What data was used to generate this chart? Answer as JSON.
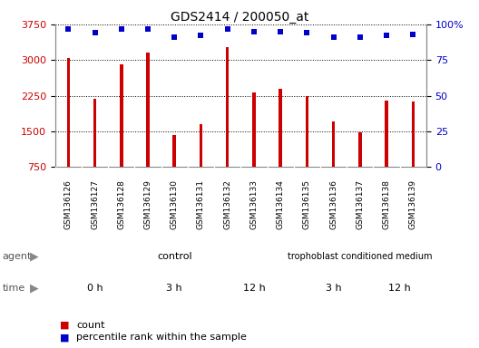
{
  "title": "GDS2414 / 200050_at",
  "samples": [
    "GSM136126",
    "GSM136127",
    "GSM136128",
    "GSM136129",
    "GSM136130",
    "GSM136131",
    "GSM136132",
    "GSM136133",
    "GSM136134",
    "GSM136135",
    "GSM136136",
    "GSM136137",
    "GSM136138",
    "GSM136139"
  ],
  "counts": [
    3050,
    2180,
    2900,
    3150,
    1430,
    1650,
    3280,
    2310,
    2390,
    2250,
    1700,
    1480,
    2150,
    2130
  ],
  "percentiles": [
    97,
    94,
    97,
    97,
    91,
    92,
    97,
    95,
    95,
    94,
    91,
    91,
    92,
    93
  ],
  "bar_color": "#cc0000",
  "dot_color": "#0000cc",
  "ylim_left": [
    750,
    3750
  ],
  "ylim_right": [
    0,
    100
  ],
  "yticks_left": [
    750,
    1500,
    2250,
    3000,
    3750
  ],
  "yticks_right": [
    0,
    25,
    50,
    75,
    100
  ],
  "bar_width": 0.12,
  "plot_bg": "#ffffff",
  "tick_area_bg": "#d0d0d0",
  "tick_label_color_left": "#cc0000",
  "tick_label_color_right": "#0000cc",
  "grid_color": "#000000",
  "agent_control_color": "#aaffaa",
  "agent_tropho_color": "#88ee88",
  "time_light_color": "#ffaaff",
  "time_dark_color": "#ee44ee",
  "agent_label_color": "#888888",
  "border_color": "#aaaaaa",
  "legend_count_color": "#cc0000",
  "legend_percentile_color": "#0000cc"
}
